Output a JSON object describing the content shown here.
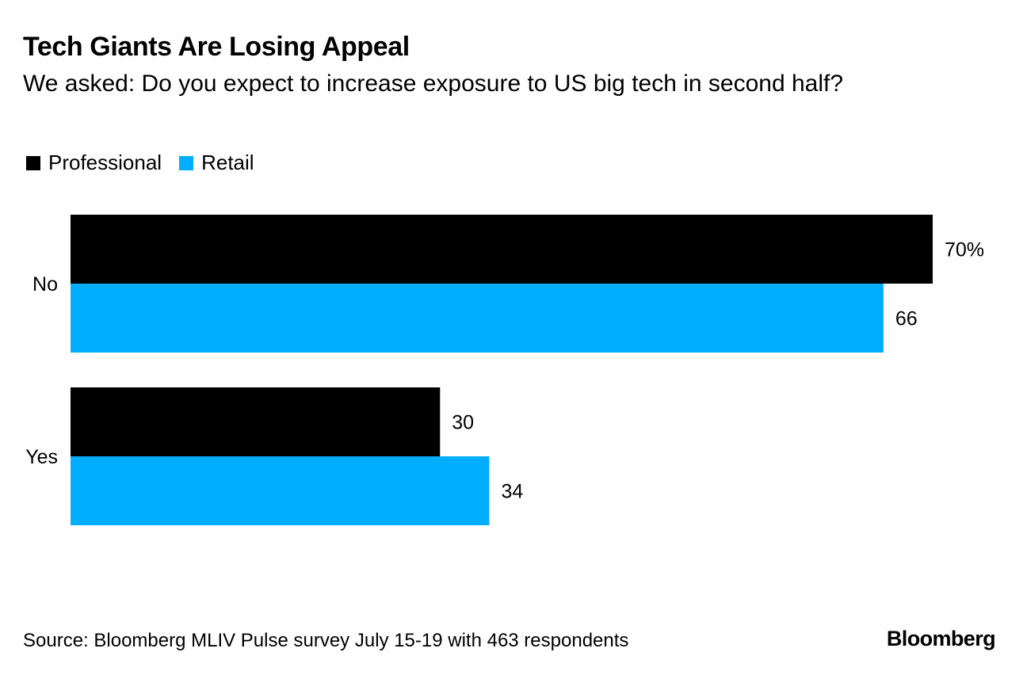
{
  "chart_data": {
    "type": "bar",
    "orientation": "horizontal",
    "title": "Tech Giants Are Losing Appeal",
    "subtitle": "We asked: Do you expect to increase exposure to US big tech in second half?",
    "categories": [
      "No",
      "Yes"
    ],
    "series": [
      {
        "name": "Professional",
        "color": "#000000",
        "values": [
          70,
          30
        ],
        "labels": [
          "70%",
          "30"
        ]
      },
      {
        "name": "Retail",
        "color": "#00aeff",
        "values": [
          66,
          34
        ],
        "labels": [
          "66",
          "34"
        ]
      }
    ],
    "xlim": [
      0,
      70
    ],
    "legend_position": "top-left",
    "source": "Source: Bloomberg MLIV Pulse survey July 15-19 with 463 respondents"
  },
  "brand": "Bloomberg"
}
